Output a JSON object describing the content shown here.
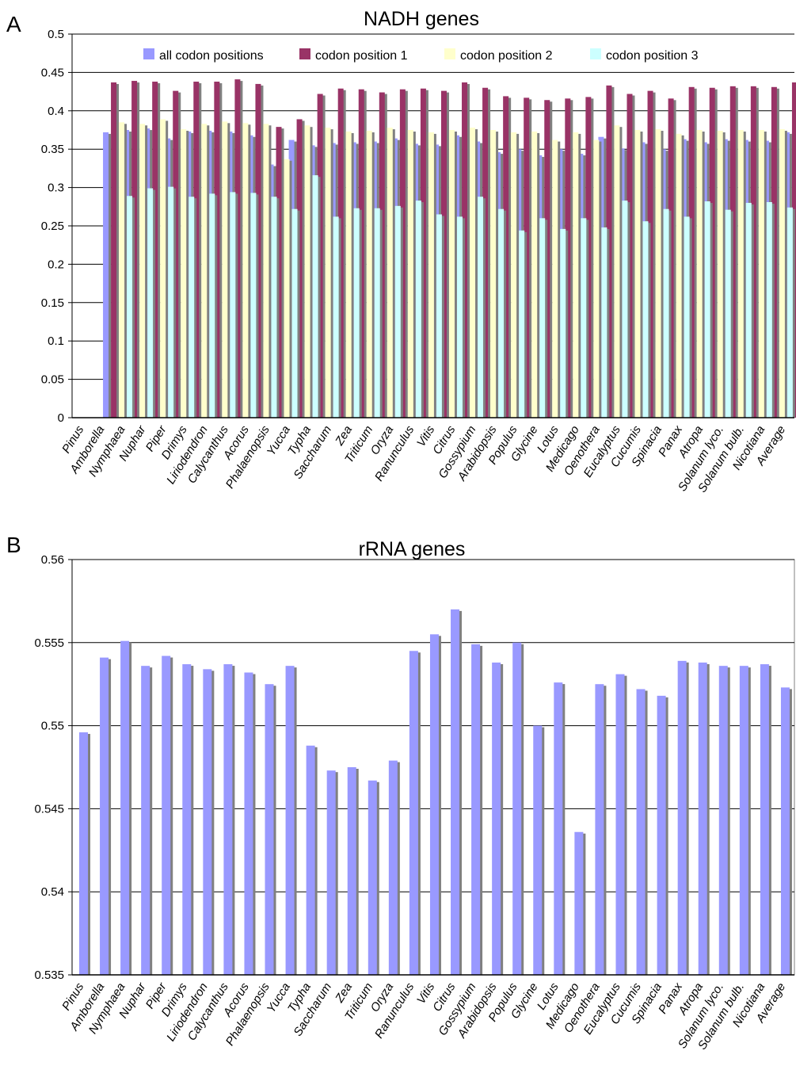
{
  "panels": [
    {
      "letter": "A",
      "chart_data": {
        "type": "bar",
        "title": "NADH genes",
        "xlabel": "",
        "ylabel": "",
        "ylim": [
          0,
          0.5
        ],
        "yticks": [
          "0",
          "0.05",
          "0.1",
          "0.15",
          "0.2",
          "0.25",
          "0.3",
          "0.35",
          "0.4",
          "0.45",
          "0.5"
        ],
        "grid": true,
        "legend_position": "top",
        "categories": [
          "Pinus",
          "Amborella",
          "Nymphaea",
          "Nuphar",
          "Piper",
          "Drimys",
          "Liriodendron",
          "Calycanthus",
          "Acorus",
          "Phalaenopsis",
          "Yucca",
          "Typha",
          "Saccharum",
          "Zea",
          "Triticum",
          "Oryza",
          "Ranunculus",
          "Vitis",
          "Citrus",
          "Gossypium",
          "Arabidopsis",
          "Populus",
          "Glycine",
          "Lotus",
          "Medicago",
          "Oenothera",
          "Eucalyptus",
          "Cucumis",
          "Spinacia",
          "Panax",
          "Atropa",
          "Solanum lyco.",
          "Solanum bulb.",
          "Nicotiana",
          "Average"
        ],
        "series": [
          {
            "name": "all codon positions",
            "color": "#9999ff",
            "values": [
              0,
              0.372,
              0.375,
              0.377,
              0.364,
              0.373,
              0.374,
              0.373,
              0.368,
              0.33,
              0.362,
              0.355,
              0.358,
              0.359,
              0.36,
              0.364,
              0.357,
              0.356,
              0.368,
              0.36,
              0.346,
              0.35,
              0.342,
              0.35,
              0.344,
              0.366,
              0.351,
              0.359,
              0.35,
              0.363,
              0.359,
              0.363,
              0.362,
              0.361,
              0.372
            ]
          },
          {
            "name": "codon position 1",
            "color": "#993366",
            "values": [
              0,
              0.437,
              0.439,
              0.438,
              0.426,
              0.438,
              0.438,
              0.441,
              0.435,
              0.379,
              0.389,
              0.422,
              0.429,
              0.428,
              0.424,
              0.428,
              0.429,
              0.426,
              0.437,
              0.43,
              0.419,
              0.417,
              0.414,
              0.416,
              0.418,
              0.433,
              0.422,
              0.426,
              0.416,
              0.431,
              0.43,
              0.432,
              0.432,
              0.431,
              0.437
            ]
          },
          {
            "name": "codon position 2",
            "color": "#ffffcc",
            "values": [
              0,
              0.385,
              0.383,
              0.389,
              0.376,
              0.383,
              0.386,
              0.384,
              0.383,
              0.337,
              0.381,
              0.378,
              0.373,
              0.374,
              0.378,
              0.375,
              0.372,
              0.375,
              0.378,
              0.375,
              0.372,
              0.373,
              0.362,
              0.372,
              0.362,
              0.381,
              0.375,
              0.376,
              0.37,
              0.375,
              0.374,
              0.375,
              0.375,
              0.376,
              0.383
            ]
          },
          {
            "name": "codon position 3",
            "color": "#ccffff",
            "values": [
              0,
              0.289,
              0.299,
              0.301,
              0.288,
              0.292,
              0.294,
              0.293,
              0.288,
              0.272,
              0.316,
              0.262,
              0.273,
              0.273,
              0.276,
              0.283,
              0.265,
              0.262,
              0.288,
              0.272,
              0.244,
              0.26,
              0.246,
              0.26,
              0.248,
              0.283,
              0.256,
              0.272,
              0.262,
              0.282,
              0.271,
              0.28,
              0.281,
              0.274,
              0.295
            ]
          }
        ]
      }
    },
    {
      "letter": "B",
      "chart_data": {
        "type": "bar",
        "title": "rRNA genes",
        "xlabel": "",
        "ylabel": "",
        "ylim": [
          0.535,
          0.56
        ],
        "yticks": [
          "0.535",
          "0.54",
          "0.545",
          "0.55",
          "0.555",
          "0.56"
        ],
        "grid": true,
        "legend_position": "none",
        "categories": [
          "Pinus",
          "Amborella",
          "Nymphaea",
          "Nuphar",
          "Piper",
          "Drimys",
          "Liriodendron",
          "Calycanthus",
          "Acorus",
          "Phalaenopsis",
          "Yucca",
          "Typha",
          "Saccharum",
          "Zea",
          "Triticum",
          "Oryza",
          "Ranunculus",
          "Vitis",
          "Citrus",
          "Gossypium",
          "Arabidopsis",
          "Populus",
          "Glycine",
          "Lotus",
          "Medicago",
          "Oenothera",
          "Eucalyptus",
          "Cucumis",
          "Spinacia",
          "Panax",
          "Atropa",
          "Solanum lyco.",
          "Solanum bulb.",
          "Nicotiana",
          "Average"
        ],
        "series": [
          {
            "color": "#9999ff",
            "values": [
              0.5496,
              0.5541,
              0.5551,
              0.5536,
              0.5542,
              0.5537,
              0.5534,
              0.5537,
              0.5532,
              0.5525,
              0.5536,
              0.5488,
              0.5473,
              0.5475,
              0.5467,
              0.5479,
              0.5545,
              0.5555,
              0.557,
              0.5549,
              0.5538,
              0.555,
              0.55,
              0.5526,
              0.5436,
              0.5525,
              0.5531,
              0.5522,
              0.5518,
              0.5539,
              0.5538,
              0.5536,
              0.5536,
              0.5537,
              0.5523
            ]
          }
        ]
      }
    }
  ]
}
